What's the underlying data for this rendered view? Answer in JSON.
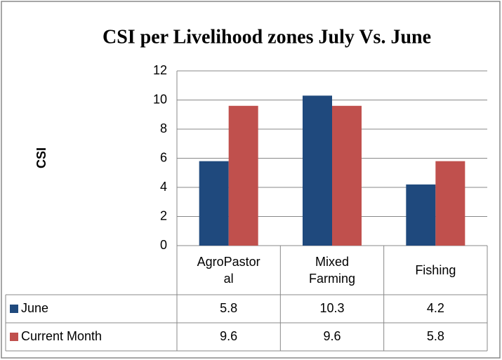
{
  "chart_data": {
    "type": "bar",
    "title": "CSI per Livelihood zones July Vs. June",
    "y_label": "CSI",
    "categories": [
      "AgroPastoral",
      "Mixed Farming",
      "Fishing"
    ],
    "series": [
      {
        "name": "June",
        "color": "#1f497d",
        "values": [
          5.8,
          10.3,
          4.2
        ]
      },
      {
        "name": "Current Month",
        "color": "#c0504d",
        "values": [
          9.6,
          9.6,
          5.8
        ]
      }
    ],
    "ylim": [
      0,
      12
    ],
    "yticks": [
      0,
      2,
      4,
      6,
      8,
      10,
      12
    ],
    "grid": true
  }
}
